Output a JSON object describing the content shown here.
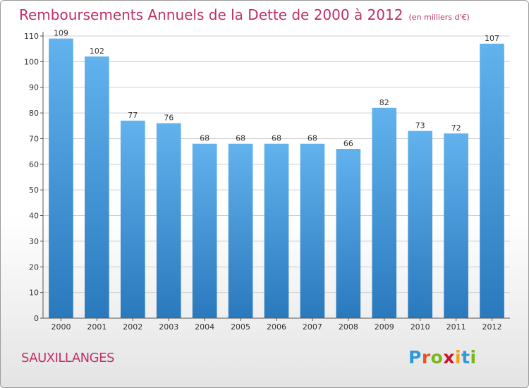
{
  "title": "Remboursements Annuels de la Dette de 2000 à 2012",
  "subtitle": "(en milliers d'€)",
  "commune": "SAUXILLANGES",
  "logo": {
    "letters": [
      "P",
      "r",
      "o",
      "x",
      "i",
      "t",
      "i"
    ],
    "colors": [
      "#2f9ad6",
      "#e2581f",
      "#7ab51d",
      "#c8142c",
      "#f0a01a",
      "#2f9ad6",
      "#7ab51d"
    ]
  },
  "colors": {
    "bar_light": "#62b2ee",
    "bar_dark": "#2a79bd",
    "title": "#c0306a",
    "grid": "#cfcfcf"
  },
  "chart_data": {
    "type": "bar",
    "title": "Remboursements Annuels de la Dette de 2000 à 2012",
    "subtitle": "(en milliers d'€)",
    "categories": [
      "2000",
      "2001",
      "2002",
      "2003",
      "2004",
      "2005",
      "2006",
      "2007",
      "2008",
      "2009",
      "2010",
      "2011",
      "2012"
    ],
    "values": [
      109,
      102,
      77,
      76,
      68,
      68,
      68,
      68,
      66,
      82,
      73,
      72,
      107
    ],
    "ylim": [
      0,
      110
    ],
    "yticks": [
      0,
      10,
      20,
      30,
      40,
      50,
      60,
      70,
      80,
      90,
      100,
      110
    ],
    "grid": true
  }
}
